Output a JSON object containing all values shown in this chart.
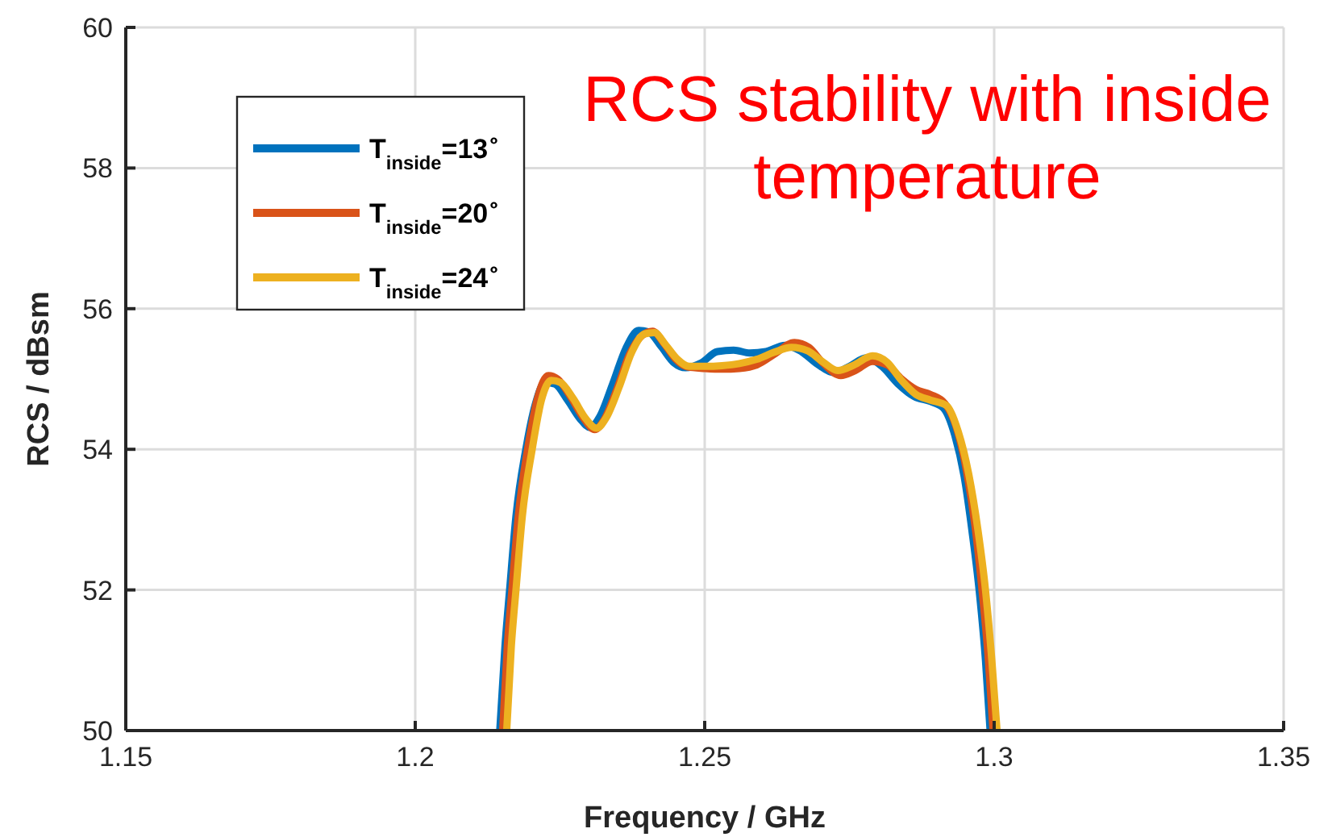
{
  "chart_data": {
    "type": "line",
    "title": "RCS stability with inside temperature",
    "xlabel": "Frequency / GHz",
    "ylabel": "RCS / dBsm",
    "xlim": [
      1.15,
      1.35
    ],
    "ylim": [
      50,
      60
    ],
    "xticks": [
      1.15,
      1.2,
      1.25,
      1.3,
      1.35
    ],
    "yticks": [
      50,
      52,
      54,
      56,
      58,
      60
    ],
    "grid": true,
    "legend": "top left",
    "line_style": "solid",
    "series": [
      {
        "name": "T$_{inside}$=13$^{∘}$",
        "color": "#0072bd",
        "x": [
          1.2146,
          1.2155,
          1.2163,
          1.2174,
          1.2191,
          1.2208,
          1.2224,
          1.2241,
          1.2263,
          1.2285,
          1.2302,
          1.2319,
          1.2341,
          1.2364,
          1.2386,
          1.2403,
          1.2425,
          1.2447,
          1.2467,
          1.2494,
          1.2522,
          1.255,
          1.2578,
          1.2606,
          1.2639,
          1.2667,
          1.2695,
          1.2723,
          1.275,
          1.2779,
          1.2806,
          1.2834,
          1.2862,
          1.289,
          1.2912,
          1.2932,
          1.2948,
          1.2962,
          1.2974,
          1.2985,
          1.2993
        ],
        "values": [
          50,
          51.2,
          52,
          53.05,
          54,
          54.66,
          54.95,
          54.93,
          54.7,
          54.43,
          54.31,
          54.47,
          54.93,
          55.44,
          55.69,
          55.67,
          55.46,
          55.23,
          55.16,
          55.23,
          55.39,
          55.41,
          55.37,
          55.39,
          55.48,
          55.39,
          55.21,
          55.09,
          55.18,
          55.3,
          55.18,
          54.93,
          54.75,
          54.68,
          54.59,
          54.2,
          53.62,
          52.82,
          52,
          51,
          50
        ]
      },
      {
        "name": "T$_{inside}$=20$^{∘}$",
        "color": "#d95319",
        "x": [
          1.2151,
          1.2159,
          1.2167,
          1.2178,
          1.2195,
          1.2212,
          1.223,
          1.2246,
          1.2268,
          1.229,
          1.231,
          1.2326,
          1.2348,
          1.237,
          1.2392,
          1.241,
          1.243,
          1.245,
          1.247,
          1.25,
          1.253,
          1.256,
          1.259,
          1.262,
          1.2655,
          1.268,
          1.2705,
          1.2735,
          1.276,
          1.279,
          1.2815,
          1.284,
          1.2865,
          1.289,
          1.2915,
          1.2935,
          1.2952,
          1.2967,
          1.2979,
          1.299,
          1.2998
        ],
        "values": [
          50,
          51.2,
          52,
          53.05,
          54.05,
          54.75,
          55.05,
          55,
          54.75,
          54.45,
          54.28,
          54.42,
          54.85,
          55.35,
          55.62,
          55.68,
          55.5,
          55.28,
          55.17,
          55.15,
          55.14,
          55.15,
          55.2,
          55.35,
          55.52,
          55.45,
          55.22,
          55.05,
          55.12,
          55.25,
          55.2,
          55,
          54.85,
          54.78,
          54.65,
          54.3,
          53.7,
          52.9,
          52,
          51,
          50
        ]
      },
      {
        "name": "T$_{inside}$=24$^{∘}$",
        "color": "#edb120",
        "x": [
          1.2158,
          1.2166,
          1.2174,
          1.2185,
          1.2202,
          1.2218,
          1.2235,
          1.2251,
          1.2273,
          1.2295,
          1.2313,
          1.233,
          1.2352,
          1.2374,
          1.2396,
          1.2413,
          1.2433,
          1.2453,
          1.2473,
          1.25,
          1.253,
          1.256,
          1.259,
          1.262,
          1.265,
          1.2678,
          1.2703,
          1.273,
          1.2758,
          1.279,
          1.2815,
          1.284,
          1.2865,
          1.289,
          1.2918,
          1.2938,
          1.2956,
          1.2972,
          1.2985,
          1.2996,
          1.3005
        ],
        "values": [
          50,
          51.2,
          52,
          53.05,
          54,
          54.7,
          54.98,
          54.95,
          54.72,
          54.43,
          54.3,
          54.45,
          54.88,
          55.38,
          55.64,
          55.66,
          55.48,
          55.28,
          55.18,
          55.18,
          55.19,
          55.22,
          55.28,
          55.38,
          55.45,
          55.4,
          55.25,
          55.12,
          55.2,
          55.33,
          55.24,
          54.98,
          54.78,
          54.7,
          54.62,
          54.25,
          53.65,
          52.85,
          52,
          51,
          50
        ]
      }
    ]
  }
}
